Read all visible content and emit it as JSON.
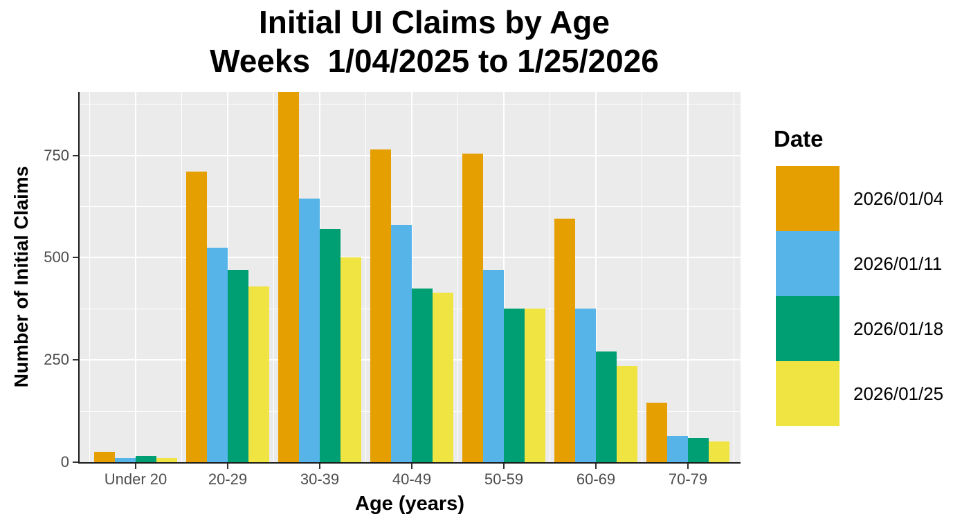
{
  "figure": {
    "title_line1": "Initial UI Claims by Age",
    "title_line2": "Weeks  1/04/2025 to 1/25/2026"
  },
  "chart_data": {
    "type": "bar",
    "title": "Initial UI Claims by Age",
    "subtitle": "Weeks  1/04/2025 to 1/25/2026",
    "xlabel": "Age (years)",
    "ylabel": "Number of Initial Claims",
    "categories": [
      "Under 20",
      "20-29",
      "30-39",
      "40-49",
      "50-59",
      "60-69",
      "70-79"
    ],
    "series": [
      {
        "name": "2026/01/04",
        "color": "#E69F00",
        "values": [
          25,
          710,
          905,
          765,
          755,
          595,
          145
        ]
      },
      {
        "name": "2026/01/11",
        "color": "#56B4E9",
        "values": [
          10,
          525,
          645,
          580,
          470,
          375,
          65
        ]
      },
      {
        "name": "2026/01/18",
        "color": "#009E73",
        "values": [
          15,
          470,
          570,
          425,
          375,
          270,
          60
        ]
      },
      {
        "name": "2026/01/25",
        "color": "#F0E442",
        "values": [
          10,
          430,
          500,
          415,
          375,
          235,
          50
        ]
      }
    ],
    "ylim": [
      0,
      905
    ],
    "yticks": [
      0,
      250,
      500,
      750
    ],
    "yticks_minor": [
      125,
      375,
      625,
      875
    ],
    "legend_title": "Date",
    "legend_position": "right",
    "grid": true,
    "panel_bg": "#EBEBEB",
    "grid_color": "#FFFFFF",
    "axis_text_color": "#4d4d4d"
  }
}
